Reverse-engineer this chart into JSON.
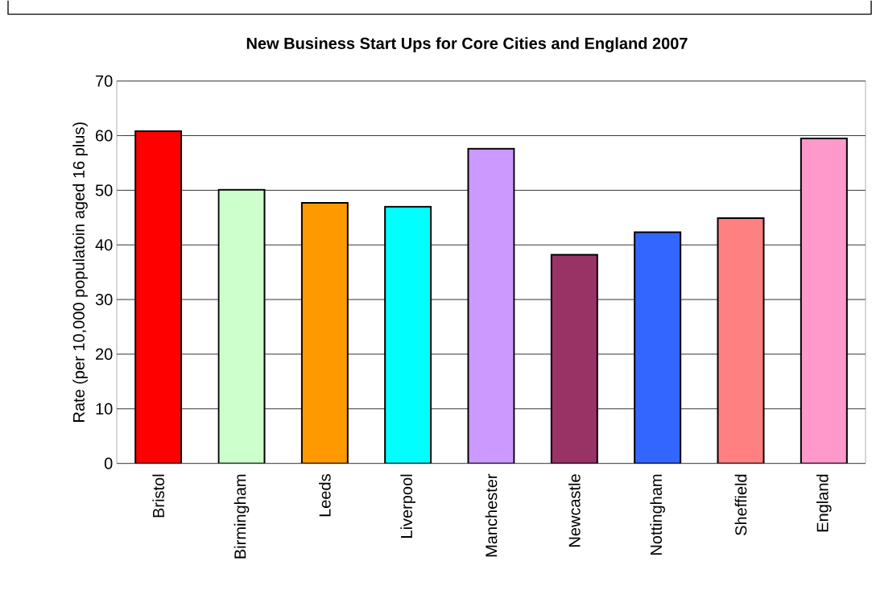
{
  "chart_data": {
    "type": "bar",
    "title": "New Business Start Ups for Core Cities and England 2007",
    "ylabel": "Rate (per 10,000 populatoin aged 16 plus)",
    "categories": [
      "Bristol",
      "Birmingham",
      "Leeds",
      "Liverpool",
      "Manchester",
      "Newcastle",
      "Nottingham",
      "Sheffield",
      "England"
    ],
    "values": [
      60.8,
      50.1,
      47.7,
      47.0,
      57.6,
      38.2,
      42.3,
      44.9,
      59.5
    ],
    "colors": [
      "#ff0000",
      "#ccffcc",
      "#ff9900",
      "#00ffff",
      "#cc99ff",
      "#993366",
      "#3366ff",
      "#ff8080",
      "#ff99cc"
    ],
    "ylim": [
      0,
      70
    ],
    "yticks": [
      0,
      10,
      20,
      30,
      40,
      50,
      60,
      70
    ],
    "grid": "y"
  }
}
